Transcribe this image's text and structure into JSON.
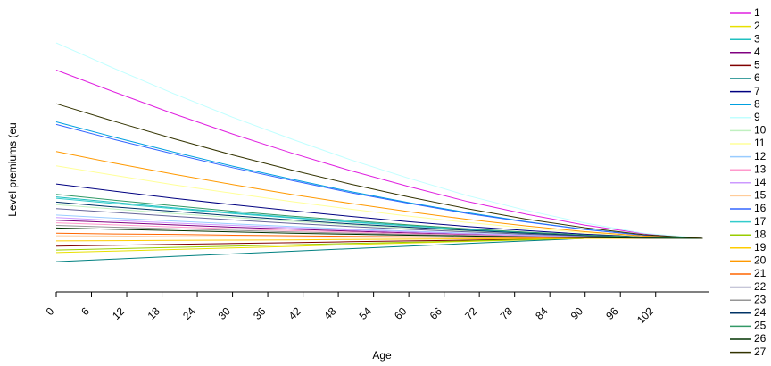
{
  "chart_data": {
    "type": "line",
    "x_label": "Age",
    "y_label": "Level premiums (eu",
    "x": [
      0,
      10,
      20,
      30,
      40,
      50,
      60,
      70,
      80,
      90,
      100,
      110
    ],
    "xlim": [
      0,
      111
    ],
    "ylim": [
      0,
      100
    ],
    "xticks": [
      0,
      6,
      12,
      18,
      24,
      30,
      36,
      42,
      48,
      54,
      60,
      66,
      72,
      78,
      84,
      90,
      96,
      102
    ],
    "legend": "right",
    "series": [
      {
        "name": "1",
        "color": "#e020e0",
        "values": [
          85,
          76.4,
          68.1,
          60.3,
          53,
          46.2,
          40,
          34.2,
          29.3,
          25.1,
          21.8,
          20
        ]
      },
      {
        "name": "2",
        "color": "#e8e000",
        "values": [
          14.5,
          15.1,
          15.7,
          16.3,
          16.9,
          17.6,
          18.2,
          18.8,
          19.4,
          20,
          20,
          20
        ]
      },
      {
        "name": "3",
        "color": "#20c0c0",
        "values": [
          36,
          33.9,
          31.8,
          29.9,
          28.1,
          26.4,
          24.9,
          23.5,
          22.3,
          21.2,
          20.4,
          20
        ]
      },
      {
        "name": "4",
        "color": "#800080",
        "values": [
          27,
          26.1,
          25.2,
          24.3,
          23.6,
          22.8,
          22.1,
          21.5,
          21,
          20.5,
          20.2,
          20
        ]
      },
      {
        "name": "5",
        "color": "#800000",
        "values": [
          17,
          17.3,
          17.7,
          18,
          18.3,
          18.7,
          19,
          19.3,
          19.7,
          20,
          20,
          20
        ]
      },
      {
        "name": "6",
        "color": "#008080",
        "values": [
          11,
          12,
          13,
          14,
          15,
          16,
          17,
          18,
          19,
          20,
          20,
          20
        ]
      },
      {
        "name": "7",
        "color": "#000080",
        "values": [
          41,
          38.2,
          35.5,
          33,
          30.7,
          28.5,
          26.4,
          24.6,
          23,
          21.6,
          20.6,
          20
        ]
      },
      {
        "name": "8",
        "color": "#00a0e0",
        "values": [
          65,
          59,
          53.3,
          47.9,
          42.9,
          38.1,
          33.8,
          29.9,
          26.4,
          23.5,
          21.2,
          20
        ]
      },
      {
        "name": "9",
        "color": "#c0ffff",
        "values": [
          95.5,
          85.5,
          75.9,
          66.8,
          58.4,
          50.4,
          43.2,
          36.5,
          30.8,
          25.9,
          22,
          20
        ]
      },
      {
        "name": "10",
        "color": "#c0f0c0",
        "values": [
          33,
          31.3,
          29.6,
          28.1,
          26.6,
          25.2,
          24,
          22.8,
          21.9,
          21,
          20.4,
          20
        ]
      },
      {
        "name": "11",
        "color": "#ffff99",
        "values": [
          48,
          44.3,
          40.7,
          37.4,
          34.2,
          31.3,
          28.6,
          26.1,
          24,
          22.2,
          20.8,
          20
        ]
      },
      {
        "name": "12",
        "color": "#99ccff",
        "values": [
          29,
          27.8,
          26.7,
          25.6,
          24.6,
          23.6,
          22.8,
          22,
          21.3,
          20.7,
          20.2,
          20
        ]
      },
      {
        "name": "13",
        "color": "#ff99cc",
        "values": [
          26,
          25.2,
          24.4,
          23.7,
          23,
          22.4,
          21.8,
          21.3,
          20.9,
          20.5,
          20.2,
          20
        ]
      },
      {
        "name": "14",
        "color": "#cc99ff",
        "values": [
          28,
          26.9,
          25.9,
          25,
          24.1,
          23.2,
          22.5,
          21.8,
          21.1,
          20.6,
          20.2,
          20
        ]
      },
      {
        "name": "15",
        "color": "#ffcc99",
        "values": [
          21,
          20.9,
          20.7,
          20.6,
          20.5,
          20.4,
          20.3,
          20.2,
          20.1,
          20.1,
          20,
          20
        ]
      },
      {
        "name": "16",
        "color": "#3366ff",
        "values": [
          64,
          58.1,
          52.6,
          47.3,
          42.4,
          37.7,
          33.5,
          29.6,
          26.3,
          23.4,
          21.2,
          20
        ]
      },
      {
        "name": "17",
        "color": "#33cccc",
        "values": [
          35.5,
          33.4,
          31.5,
          29.6,
          27.9,
          26.2,
          24.8,
          23.4,
          22.2,
          21.2,
          20.4,
          20
        ]
      },
      {
        "name": "18",
        "color": "#99cc00",
        "values": [
          15.5,
          16,
          16.5,
          17,
          17.5,
          18,
          18.5,
          19,
          19.5,
          20,
          20,
          20
        ]
      },
      {
        "name": "19",
        "color": "#ffcc00",
        "values": [
          19,
          19.1,
          19.2,
          19.3,
          19.4,
          19.6,
          19.7,
          19.8,
          19.9,
          20,
          20,
          20
        ]
      },
      {
        "name": "20",
        "color": "#ff9900",
        "values": [
          53.5,
          49,
          44.8,
          40.8,
          37,
          33.5,
          30.3,
          27.3,
          24.8,
          22.6,
          20.9,
          20
        ]
      },
      {
        "name": "21",
        "color": "#ff6600",
        "values": [
          22,
          21.7,
          21.5,
          21.2,
          21,
          20.8,
          20.6,
          20.4,
          20.3,
          20.2,
          20.1,
          20
        ]
      },
      {
        "name": "22",
        "color": "#666699",
        "values": [
          31.5,
          30,
          28.5,
          27.1,
          25.8,
          24.6,
          23.5,
          22.5,
          21.6,
          20.9,
          20.3,
          20
        ]
      },
      {
        "name": "23",
        "color": "#969696",
        "values": [
          25,
          24.3,
          23.7,
          23.1,
          22.5,
          22,
          21.5,
          21.1,
          20.7,
          20.4,
          20.1,
          20
        ]
      },
      {
        "name": "24",
        "color": "#003366",
        "values": [
          34,
          32.1,
          30.4,
          28.7,
          27.1,
          25.6,
          24.3,
          23.1,
          22,
          21.1,
          20.4,
          20
        ]
      },
      {
        "name": "25",
        "color": "#339966",
        "values": [
          37,
          34.7,
          32.6,
          30.5,
          28.6,
          26.9,
          25.2,
          23.7,
          22.4,
          21.3,
          20.5,
          20
        ]
      },
      {
        "name": "26",
        "color": "#003300",
        "values": [
          24,
          23.5,
          23,
          22.5,
          22,
          21.6,
          21.2,
          20.9,
          20.6,
          20.3,
          20.1,
          20
        ]
      },
      {
        "name": "27",
        "color": "#333300",
        "values": [
          72,
          65.1,
          58.5,
          52.2,
          46.4,
          41,
          36,
          31.4,
          27.4,
          24.1,
          21.4,
          20
        ]
      }
    ]
  }
}
